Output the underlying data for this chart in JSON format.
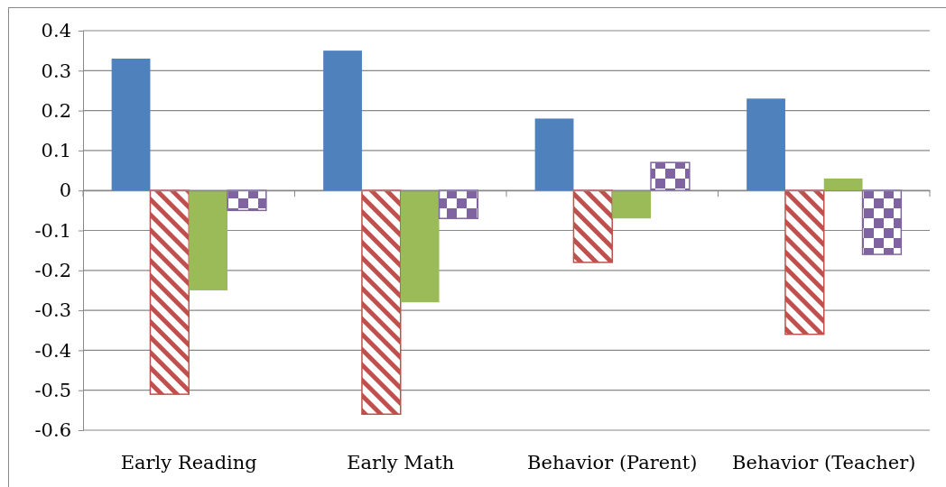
{
  "chart_data": {
    "type": "bar",
    "categories": [
      "Early Reading",
      "Early Math",
      "Behavior (Parent)",
      "Behavior (Teacher)"
    ],
    "series": [
      {
        "color": "#4f81bd",
        "values": [
          0.33,
          0.35,
          0.18,
          0.23
        ]
      },
      {
        "color": "#c0504d",
        "values": [
          -0.51,
          -0.56,
          -0.18,
          -0.36
        ]
      },
      {
        "color": "#9bbb59",
        "values": [
          -0.25,
          -0.28,
          -0.07,
          0.03
        ]
      },
      {
        "color": "#8064a2",
        "values": [
          -0.05,
          -0.07,
          0.07,
          -0.16
        ]
      }
    ],
    "ylim": [
      -0.6,
      0.4
    ],
    "yticks": [
      -0.6,
      -0.5,
      -0.4,
      -0.3,
      -0.2,
      -0.1,
      0,
      0.1,
      0.2,
      0.3,
      0.4
    ],
    "grid": "y"
  }
}
